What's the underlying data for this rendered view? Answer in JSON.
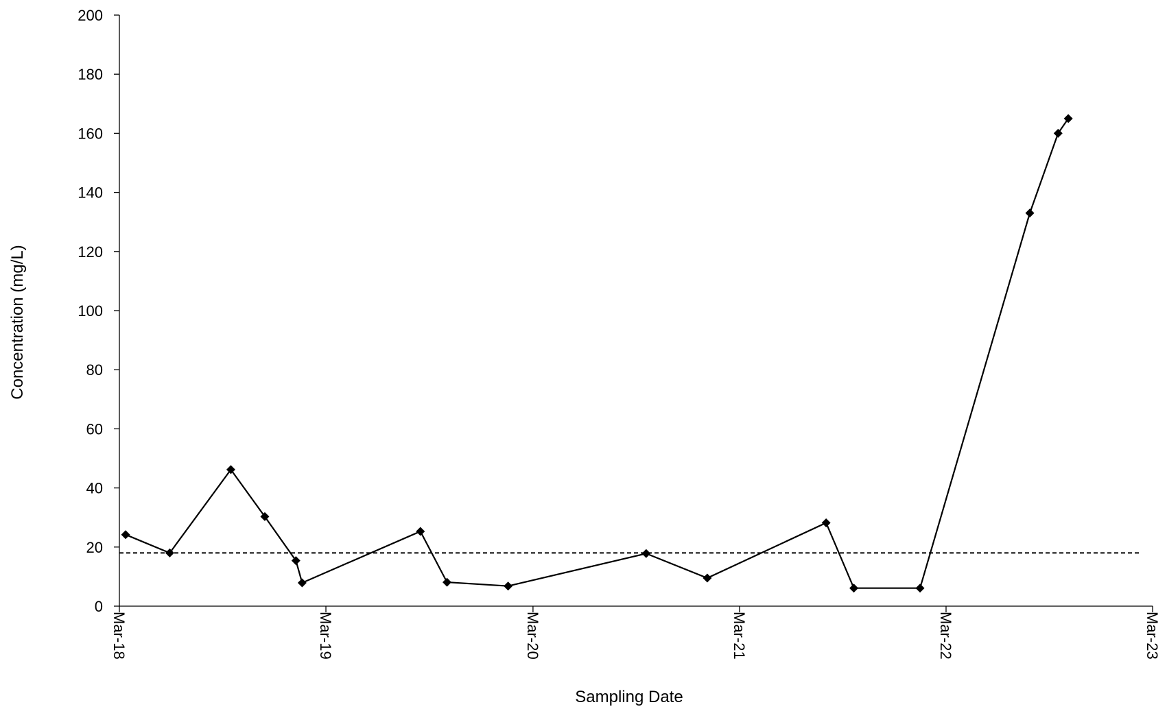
{
  "chart_data": {
    "type": "line",
    "title": "",
    "xlabel": "Sampling Date",
    "ylabel": "Concentration (mg/L)",
    "x_tick_labels": [
      "Mar-18",
      "Mar-19",
      "Mar-20",
      "Mar-21",
      "Mar-22",
      "Mar-23"
    ],
    "x_ticks": [
      "2018-03-01",
      "2019-03-01",
      "2020-03-01",
      "2021-03-01",
      "2022-03-01",
      "2023-03-01"
    ],
    "xlim": [
      "2018-03-01",
      "2023-03-01"
    ],
    "y_ticks": [
      0,
      20,
      40,
      60,
      80,
      100,
      120,
      140,
      160,
      180,
      200
    ],
    "ylim": [
      0,
      200
    ],
    "grid": false,
    "legend": "none",
    "series": [
      {
        "color": "#000000",
        "marker": "diamond",
        "line_style": "solid",
        "points": [
          {
            "x": "2018-03-12",
            "y": 24.2
          },
          {
            "x": "2018-05-29",
            "y": 18.0
          },
          {
            "x": "2018-09-14",
            "y": 46.2
          },
          {
            "x": "2018-11-13",
            "y": 30.3
          },
          {
            "x": "2019-01-07",
            "y": 15.4
          },
          {
            "x": "2019-01-18",
            "y": 7.9
          },
          {
            "x": "2019-08-15",
            "y": 25.3
          },
          {
            "x": "2019-10-01",
            "y": 8.1
          },
          {
            "x": "2020-01-17",
            "y": 6.8
          },
          {
            "x": "2020-09-17",
            "y": 17.8
          },
          {
            "x": "2021-01-03",
            "y": 9.5
          },
          {
            "x": "2021-08-01",
            "y": 28.2
          },
          {
            "x": "2021-09-19",
            "y": 6.1
          },
          {
            "x": "2022-01-14",
            "y": 6.1
          },
          {
            "x": "2022-07-27",
            "y": 133.0
          },
          {
            "x": "2022-09-15",
            "y": 160.0
          },
          {
            "x": "2022-10-03",
            "y": 165.0
          }
        ]
      },
      {
        "color": "#000000",
        "marker": "none",
        "line_style": "dashed",
        "points": [
          {
            "x": "2018-03-01",
            "y": 18.0
          },
          {
            "x": "2023-02-05",
            "y": 18.0
          }
        ]
      }
    ]
  }
}
